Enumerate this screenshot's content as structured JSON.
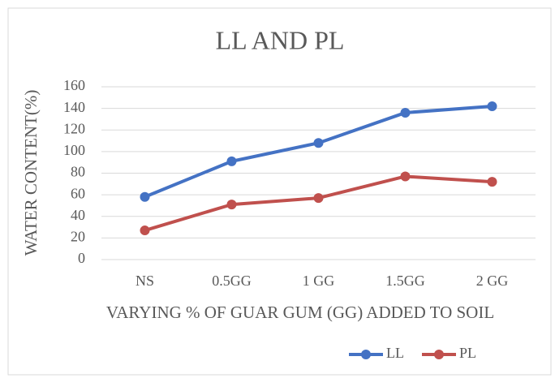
{
  "chart_data": {
    "type": "line",
    "title": "LL AND PL",
    "x_label": "VARYING % OF GUAR GUM (GG) ADDED TO SOIL",
    "y_label": "WATER CONTENT(%)",
    "categories": [
      "NS",
      "0.5GG",
      "1 GG",
      "1.5GG",
      "2 GG"
    ],
    "series": [
      {
        "name": "LL",
        "color": "#4472c4",
        "values": [
          58,
          91,
          108,
          136,
          142
        ]
      },
      {
        "name": "PL",
        "color": "#c0504d",
        "values": [
          27,
          51,
          57,
          77,
          72
        ]
      }
    ],
    "ylim": [
      0,
      160
    ],
    "yticks": [
      0,
      20,
      40,
      60,
      80,
      100,
      120,
      140,
      160
    ],
    "grid": true,
    "legend": "bottom-right"
  }
}
